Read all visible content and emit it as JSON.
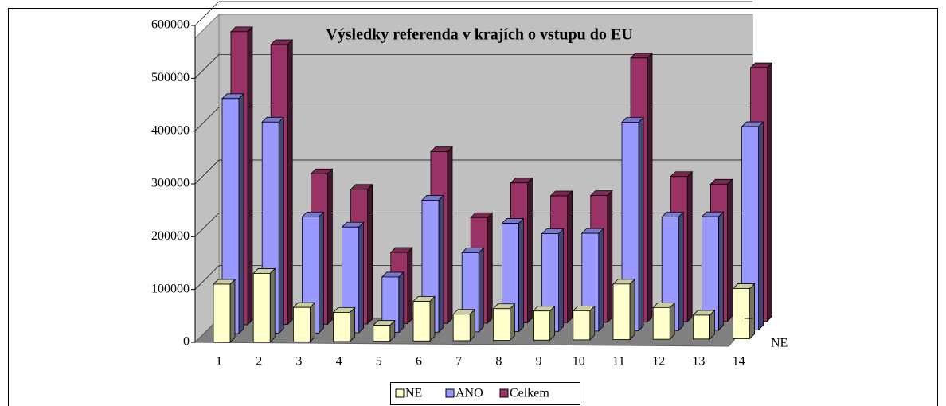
{
  "chart_data": {
    "type": "bar3d",
    "title": "Výsledky referenda v krajích o vstupu do EU",
    "categories": [
      "1",
      "2",
      "3",
      "4",
      "5",
      "6",
      "7",
      "8",
      "9",
      "10",
      "11",
      "12",
      "13",
      "14"
    ],
    "series": [
      {
        "name": "NE",
        "color": "#FFFFCC",
        "values": [
          110000,
          130000,
          65000,
          55000,
          30000,
          75000,
          50000,
          60000,
          55000,
          55000,
          105000,
          60000,
          45000,
          95000
        ]
      },
      {
        "name": "ANO",
        "color": "#9999FF",
        "values": [
          445000,
          400000,
          220000,
          200000,
          105000,
          250000,
          150000,
          205000,
          185000,
          185000,
          395000,
          215000,
          215000,
          385000
        ]
      },
      {
        "name": "Celkem",
        "color": "#993366",
        "values": [
          555000,
          530000,
          285000,
          255000,
          135000,
          325000,
          200000,
          265000,
          240000,
          240000,
          500000,
          275000,
          260000,
          480000
        ]
      }
    ],
    "depth_label": "NE",
    "ylim": [
      0,
      600000
    ],
    "yticks": [
      0,
      100000,
      200000,
      300000,
      400000,
      500000,
      600000
    ],
    "grid": true,
    "legend": "bottom"
  }
}
